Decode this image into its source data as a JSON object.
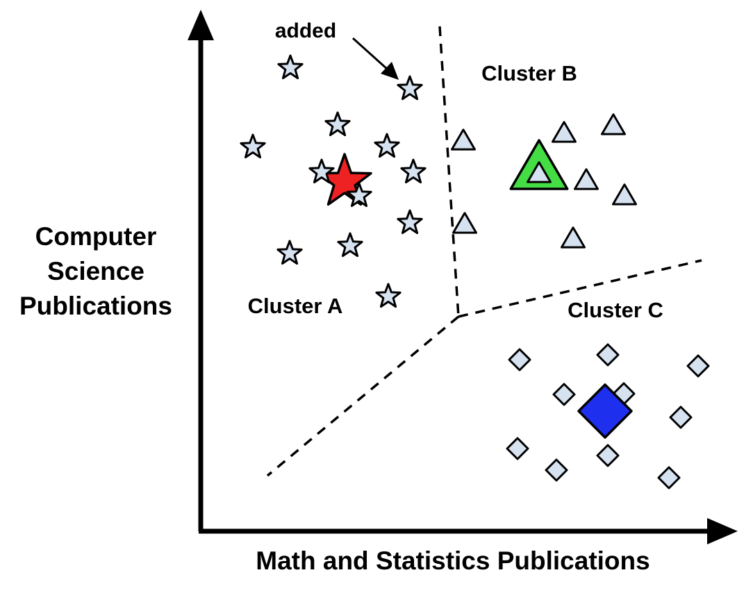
{
  "diagram": {
    "x_axis_label": "Math and Statistics Publications",
    "y_axis_label_lines": [
      "Computer",
      "Science",
      "Publications"
    ],
    "annotation": "added",
    "clusters": [
      {
        "label": "Cluster A",
        "shape": "star",
        "fill": "#d6e2f0",
        "centroid_fill": "#ee2222"
      },
      {
        "label": "Cluster B",
        "shape": "triangle",
        "fill": "#d6e2f0",
        "centroid_fill": "#44dd44"
      },
      {
        "label": "Cluster C",
        "shape": "diamond",
        "fill": "#d6e2f0",
        "centroid_fill": "#1f2fee"
      }
    ]
  }
}
